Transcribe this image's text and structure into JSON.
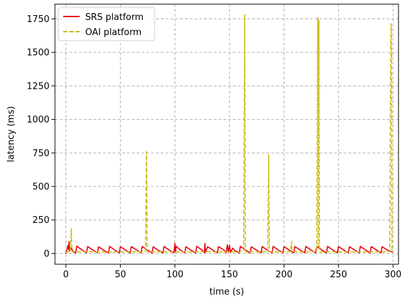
{
  "chart_data": {
    "type": "line",
    "title": "",
    "xlabel": "time (s)",
    "ylabel": "latency (ms)",
    "xlim": [
      -10,
      305
    ],
    "ylim": [
      -80,
      1860
    ],
    "xticks": [
      0,
      50,
      100,
      150,
      200,
      250,
      300
    ],
    "yticks": [
      0,
      250,
      500,
      750,
      1000,
      1250,
      1500,
      1750
    ],
    "grid": true,
    "legend_position": "top-left",
    "series": [
      {
        "name": "SRS platform",
        "color": "#e8000b",
        "style": "solid",
        "points": [
          [
            0,
            0
          ],
          [
            2,
            60
          ],
          [
            2.5,
            30
          ],
          [
            3,
            90
          ],
          [
            3.5,
            20
          ],
          [
            5,
            40
          ],
          [
            7,
            10
          ],
          [
            9,
            5
          ],
          [
            10,
            55
          ],
          [
            15,
            25
          ],
          [
            19,
            5
          ],
          [
            20,
            52
          ],
          [
            25,
            24
          ],
          [
            29,
            5
          ],
          [
            30,
            50
          ],
          [
            35,
            23
          ],
          [
            39,
            4
          ],
          [
            40,
            53
          ],
          [
            45,
            25
          ],
          [
            49,
            5
          ],
          [
            50,
            51
          ],
          [
            55,
            24
          ],
          [
            59,
            4
          ],
          [
            60,
            52
          ],
          [
            65,
            25
          ],
          [
            69,
            5
          ],
          [
            70,
            53
          ],
          [
            75,
            24
          ],
          [
            79,
            4
          ],
          [
            80,
            50
          ],
          [
            85,
            23
          ],
          [
            89,
            5
          ],
          [
            90,
            52
          ],
          [
            95,
            24
          ],
          [
            99,
            5
          ],
          [
            100,
            75
          ],
          [
            100.5,
            10
          ],
          [
            101,
            55
          ],
          [
            105,
            25
          ],
          [
            109,
            5
          ],
          [
            110,
            51
          ],
          [
            115,
            23
          ],
          [
            119,
            4
          ],
          [
            120,
            53
          ],
          [
            125,
            25
          ],
          [
            127,
            5
          ],
          [
            127.5,
            75
          ],
          [
            128,
            10
          ],
          [
            130,
            50
          ],
          [
            135,
            24
          ],
          [
            139,
            5
          ],
          [
            140,
            52
          ],
          [
            145,
            25
          ],
          [
            147,
            5
          ],
          [
            148,
            65
          ],
          [
            149,
            10
          ],
          [
            150,
            62
          ],
          [
            151,
            10
          ],
          [
            153,
            40
          ],
          [
            155,
            20
          ],
          [
            159,
            5
          ],
          [
            160,
            53
          ],
          [
            165,
            24
          ],
          [
            169,
            5
          ],
          [
            170,
            50
          ],
          [
            175,
            24
          ],
          [
            179,
            5
          ],
          [
            180,
            52
          ],
          [
            185,
            23
          ],
          [
            189,
            4
          ],
          [
            190,
            53
          ],
          [
            195,
            25
          ],
          [
            199,
            5
          ],
          [
            200,
            51
          ],
          [
            205,
            24
          ],
          [
            209,
            5
          ],
          [
            210,
            52
          ],
          [
            215,
            25
          ],
          [
            219,
            5
          ],
          [
            220,
            53
          ],
          [
            225,
            24
          ],
          [
            229,
            5
          ],
          [
            230,
            52
          ],
          [
            235,
            24
          ],
          [
            239,
            5
          ],
          [
            240,
            53
          ],
          [
            245,
            25
          ],
          [
            249,
            5
          ],
          [
            250,
            52
          ],
          [
            255,
            24
          ],
          [
            259,
            5
          ],
          [
            260,
            51
          ],
          [
            265,
            24
          ],
          [
            269,
            5
          ],
          [
            270,
            53
          ],
          [
            275,
            25
          ],
          [
            279,
            5
          ],
          [
            280,
            52
          ],
          [
            285,
            24
          ],
          [
            289,
            5
          ],
          [
            290,
            51
          ],
          [
            295,
            24
          ],
          [
            300,
            10
          ]
        ]
      },
      {
        "name": "OAI platform",
        "color": "#c9bb12",
        "style": "dashed",
        "points": [
          [
            0,
            10
          ],
          [
            2,
            15
          ],
          [
            4,
            10
          ],
          [
            5,
            185
          ],
          [
            5.5,
            15
          ],
          [
            10,
            12
          ],
          [
            20,
            14
          ],
          [
            30,
            11
          ],
          [
            40,
            13
          ],
          [
            50,
            12
          ],
          [
            60,
            14
          ],
          [
            70,
            12
          ],
          [
            73,
            15
          ],
          [
            74,
            760
          ],
          [
            74.5,
            20
          ],
          [
            75,
            12
          ],
          [
            90,
            13
          ],
          [
            110,
            12
          ],
          [
            130,
            14
          ],
          [
            150,
            12
          ],
          [
            160,
            13
          ],
          [
            163,
            20
          ],
          [
            164,
            1780
          ],
          [
            164.5,
            30
          ],
          [
            165,
            12
          ],
          [
            175,
            13
          ],
          [
            185,
            14
          ],
          [
            186,
            735
          ],
          [
            186.5,
            20
          ],
          [
            187,
            12
          ],
          [
            200,
            13
          ],
          [
            206,
            15
          ],
          [
            207,
            90
          ],
          [
            207.5,
            15
          ],
          [
            215,
            12
          ],
          [
            225,
            13
          ],
          [
            230,
            15
          ],
          [
            231,
            1760
          ],
          [
            231.5,
            40
          ],
          [
            232,
            1740
          ],
          [
            232.5,
            20
          ],
          [
            233,
            12
          ],
          [
            250,
            13
          ],
          [
            270,
            12
          ],
          [
            290,
            13
          ],
          [
            297,
            15
          ],
          [
            298,
            1715
          ],
          [
            298.5,
            1700
          ],
          [
            299,
            20
          ],
          [
            300,
            12
          ]
        ]
      }
    ]
  }
}
